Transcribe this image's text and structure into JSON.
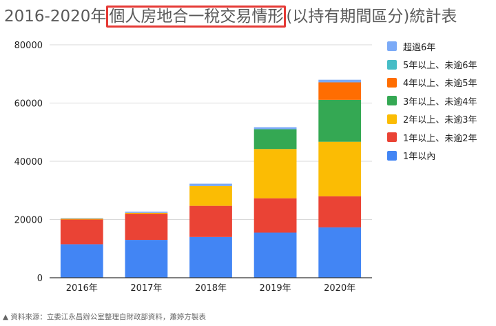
{
  "title": {
    "prefix": "2016-2020年",
    "highlight": "個人房地合一稅交易情形",
    "suffix": "(以持有期間區分)統計表"
  },
  "chart_data": {
    "type": "bar",
    "stacked": true,
    "categories": [
      "2016年",
      "2017年",
      "2018年",
      "2019年",
      "2020年"
    ],
    "ylim": [
      0,
      80000
    ],
    "yticks": [
      "0",
      "20000",
      "40000",
      "60000",
      "80000"
    ],
    "grid": true,
    "legend_position": "right",
    "series": [
      {
        "name": "1年以內",
        "color": "#4285f4",
        "values": [
          11500,
          13000,
          14000,
          15500,
          17300
        ]
      },
      {
        "name": "1年以上、未逾2年",
        "color": "#ea4335",
        "values": [
          8500,
          9000,
          10700,
          11800,
          10700
        ]
      },
      {
        "name": "2年以上、未逾3年",
        "color": "#fbbc04",
        "values": [
          300,
          300,
          6800,
          16900,
          18700
        ]
      },
      {
        "name": "3年以上、未逾4年",
        "color": "#34a853",
        "values": [
          0,
          0,
          0,
          6800,
          14400
        ]
      },
      {
        "name": "4年以上、未逾5年",
        "color": "#ff6d01",
        "values": [
          0,
          0,
          0,
          0,
          6000
        ]
      },
      {
        "name": "5年以上、未逾6年",
        "color": "#46bdc6",
        "values": [
          0,
          0,
          0,
          0,
          0
        ]
      },
      {
        "name": "超過6年",
        "color": "#7baaf7",
        "values": [
          200,
          400,
          800,
          700,
          900
        ]
      }
    ]
  },
  "source": "▲ 資料來源：立委江永昌辦公室整理自財政部資料，蕭婷方製表"
}
